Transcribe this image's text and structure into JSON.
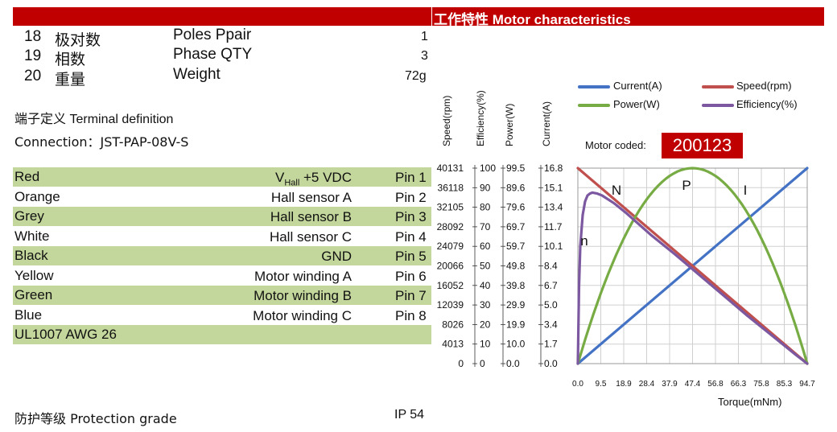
{
  "header": {
    "title": "工作特性 Motor characteristics"
  },
  "specs": [
    {
      "num": "18",
      "cn": "极对数",
      "en": "Poles Ppair",
      "value": "1"
    },
    {
      "num": "19",
      "cn": "相数",
      "en": "Phase QTY",
      "value": "3"
    },
    {
      "num": "20",
      "cn": "重量",
      "en": "Weight",
      "value": "72g"
    }
  ],
  "terminal": {
    "title_cn": "端子定义",
    "title_en": "Terminal definition",
    "connection": "Connection：JST-PAP-08V-S"
  },
  "wires": [
    {
      "color": "Red",
      "func_prefix": "V",
      "func_sub": "Hall",
      "func": " +5 VDC",
      "pin": "Pin 1",
      "shaded": true
    },
    {
      "color": "Orange",
      "func": "Hall sensor A",
      "pin": "Pin 2",
      "shaded": false
    },
    {
      "color": "Grey",
      "func": "Hall sensor B",
      "pin": "Pin 3",
      "shaded": true
    },
    {
      "color": "White",
      "func": "Hall sensor C",
      "pin": "Pin 4",
      "shaded": false
    },
    {
      "color": "Black",
      "func": "GND",
      "pin": "Pin 5",
      "shaded": true
    },
    {
      "color": "Yellow",
      "func": "Motor winding A",
      "pin": "Pin 6",
      "shaded": false
    },
    {
      "color": "Green",
      "func": "Motor winding B",
      "pin": "Pin 7",
      "shaded": true
    },
    {
      "color": "Blue",
      "func": "Motor winding C",
      "pin": "Pin 8",
      "shaded": false
    }
  ],
  "cable": "UL1007 AWG 26",
  "protection": {
    "label": "防护等级 Protection grade",
    "value": "IP 54"
  },
  "motor_coded": {
    "label": "Motor coded:",
    "value": "200123"
  },
  "colors": {
    "red": "#c00000",
    "green_row": "#c3d69b",
    "current": "#4472c4",
    "speed": "#c0504d",
    "power": "#77ab43",
    "efficiency": "#7c58a0"
  },
  "chart_data": {
    "type": "line",
    "xlabel": "Torque(mNm)",
    "x_ticks": [
      "0.0",
      "9.5",
      "18.9",
      "28.4",
      "37.9",
      "47.4",
      "56.8",
      "66.3",
      "75.8",
      "85.3",
      "94.7"
    ],
    "xlim": [
      0,
      94.7
    ],
    "grid": true,
    "legend_position": "top-right",
    "axes": [
      {
        "label": "Speed(rpm)",
        "ticks": [
          "40131",
          "36118",
          "32105",
          "28092",
          "24079",
          "20066",
          "16052",
          "12039",
          "8026",
          "4013",
          "0"
        ],
        "range": [
          0,
          40131
        ]
      },
      {
        "label": "Efficiency(%)",
        "ticks": [
          "100",
          "90",
          "80",
          "70",
          "60",
          "50",
          "40",
          "30",
          "20",
          "10",
          "0"
        ],
        "range": [
          0,
          100
        ]
      },
      {
        "label": "Power(W)",
        "ticks": [
          "99.5",
          "89.6",
          "79.6",
          "69.7",
          "59.7",
          "49.8",
          "39.8",
          "29.9",
          "19.9",
          "10.0",
          "0.0"
        ],
        "range": [
          0,
          99.5
        ]
      },
      {
        "label": "Current(A)",
        "ticks": [
          "16.8",
          "15.1",
          "13.4",
          "11.7",
          "10.1",
          "8.4",
          "6.7",
          "5.0",
          "3.4",
          "1.7",
          "0.0"
        ],
        "range": [
          0,
          16.8
        ]
      }
    ],
    "series": [
      {
        "name": "Current(A)",
        "axis": "Current(A)",
        "color": "#4472c4",
        "x": [
          0,
          94.7
        ],
        "y": [
          0,
          16.8
        ]
      },
      {
        "name": "Speed(rpm)",
        "axis": "Speed(rpm)",
        "color": "#c0504d",
        "x": [
          0,
          94.7
        ],
        "y": [
          40131,
          0
        ]
      },
      {
        "name": "Power(W)",
        "axis": "Power(W)",
        "color": "#77ab43",
        "x": [
          0,
          9.5,
          18.9,
          28.4,
          37.9,
          47.4,
          56.8,
          66.3,
          75.8,
          85.3,
          94.7
        ],
        "y": [
          0,
          35.8,
          63.7,
          83.6,
          95.5,
          99.5,
          95.5,
          83.6,
          63.7,
          35.8,
          0
        ]
      },
      {
        "name": "Efficiency(%)",
        "axis": "Efficiency(%)",
        "color": "#7c58a0",
        "x": [
          0,
          0.5,
          1,
          2,
          3,
          4,
          5,
          6,
          8,
          10,
          15,
          20,
          30,
          40,
          50,
          60,
          70,
          80,
          90,
          94.7
        ],
        "y": [
          0,
          40,
          60,
          76,
          83,
          86,
          87,
          87.5,
          87,
          86,
          82,
          77,
          66,
          56,
          45.5,
          35,
          24.5,
          14.5,
          4.5,
          0
        ]
      }
    ],
    "annotations": [
      "N",
      "P",
      "I",
      "n"
    ]
  }
}
